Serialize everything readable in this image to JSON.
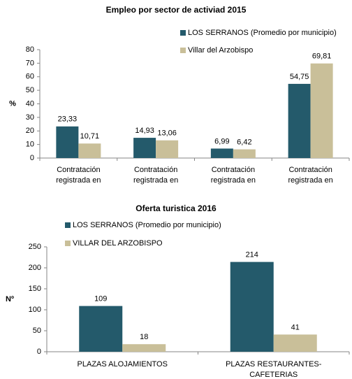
{
  "chart_data": [
    {
      "type": "bar",
      "title": "Empleo por sector de activiad 2015",
      "y_label": "%",
      "categories": [
        "Contratación registrada en",
        "Contratación registrada en",
        "Contratación registrada en",
        "Contratación registrada en"
      ],
      "series": [
        {
          "name": "LOS SERRANOS (Promedio por municipio)",
          "color": "#245a6b",
          "values": [
            23.33,
            14.93,
            6.99,
            54.75
          ],
          "value_labels": [
            "23,33",
            "14,93",
            "6,99",
            "54,75"
          ]
        },
        {
          "name": "Villar del Arzobispo",
          "color": "#c9bf99",
          "values": [
            10.71,
            13.06,
            6.42,
            69.81
          ],
          "value_labels": [
            "10,71",
            "13,06",
            "6,42",
            "69,81"
          ]
        }
      ],
      "ylim": [
        0,
        80
      ],
      "yticks": [
        0,
        10,
        20,
        30,
        40,
        50,
        60,
        70,
        80
      ],
      "grid": false,
      "legend": "top-right"
    },
    {
      "type": "bar",
      "title": "Oferta turistica 2016",
      "y_label": "Nº",
      "categories": [
        "PLAZAS ALOJAMIENTOS",
        "PLAZAS RESTAURANTES-CAFETERIAS"
      ],
      "series": [
        {
          "name": "LOS SERRANOS (Promedio por municipio)",
          "color": "#245a6b",
          "values": [
            109,
            214
          ]
        },
        {
          "name": "VILLAR DEL ARZOBISPO",
          "color": "#c9bf99",
          "values": [
            18,
            41
          ]
        }
      ],
      "ylim": [
        0,
        250
      ],
      "yticks": [
        0,
        50,
        100,
        150,
        200,
        250
      ],
      "grid": false,
      "legend": "top-left"
    }
  ]
}
